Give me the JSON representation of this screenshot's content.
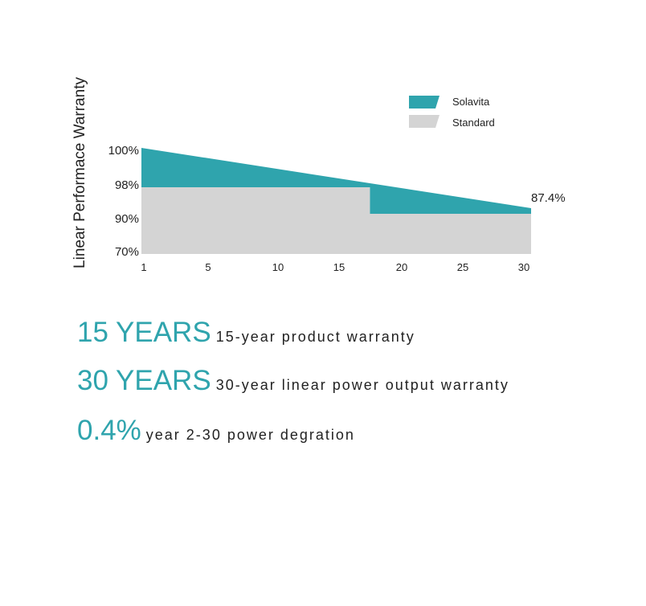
{
  "chart_data": {
    "type": "area",
    "ylabel": "Linear Performace Warranty",
    "xlabel": "",
    "x_ticks": [
      1,
      5,
      10,
      15,
      20,
      25,
      30
    ],
    "x_tick_labels": [
      "1",
      "5",
      "10",
      "15",
      "20",
      "25",
      "30"
    ],
    "y_ticks": [
      100,
      98,
      90,
      70
    ],
    "y_tick_labels": [
      "100%",
      "98%",
      "90%",
      "70%"
    ],
    "xlim": [
      1,
      30
    ],
    "legend_position": "top-right",
    "series": [
      {
        "name": "Solavita",
        "color": "#2fa4ad",
        "x": [
          1,
          30
        ],
        "y": [
          100,
          87.4
        ]
      },
      {
        "name": "Standard",
        "color": "#d4d4d4",
        "x": [
          1,
          18,
          18,
          30
        ],
        "y": [
          98,
          98,
          90,
          90
        ]
      }
    ],
    "annotations": [
      {
        "text": "87.4%",
        "x": 30,
        "y": 87.4
      }
    ]
  },
  "features": [
    {
      "headline": "15 YEARS",
      "text": "15-year product warranty"
    },
    {
      "headline": "30 YEARS",
      "text": "30-year linear power output warranty"
    },
    {
      "headline": "0.4%",
      "text": "year 2-30 power degration"
    }
  ]
}
